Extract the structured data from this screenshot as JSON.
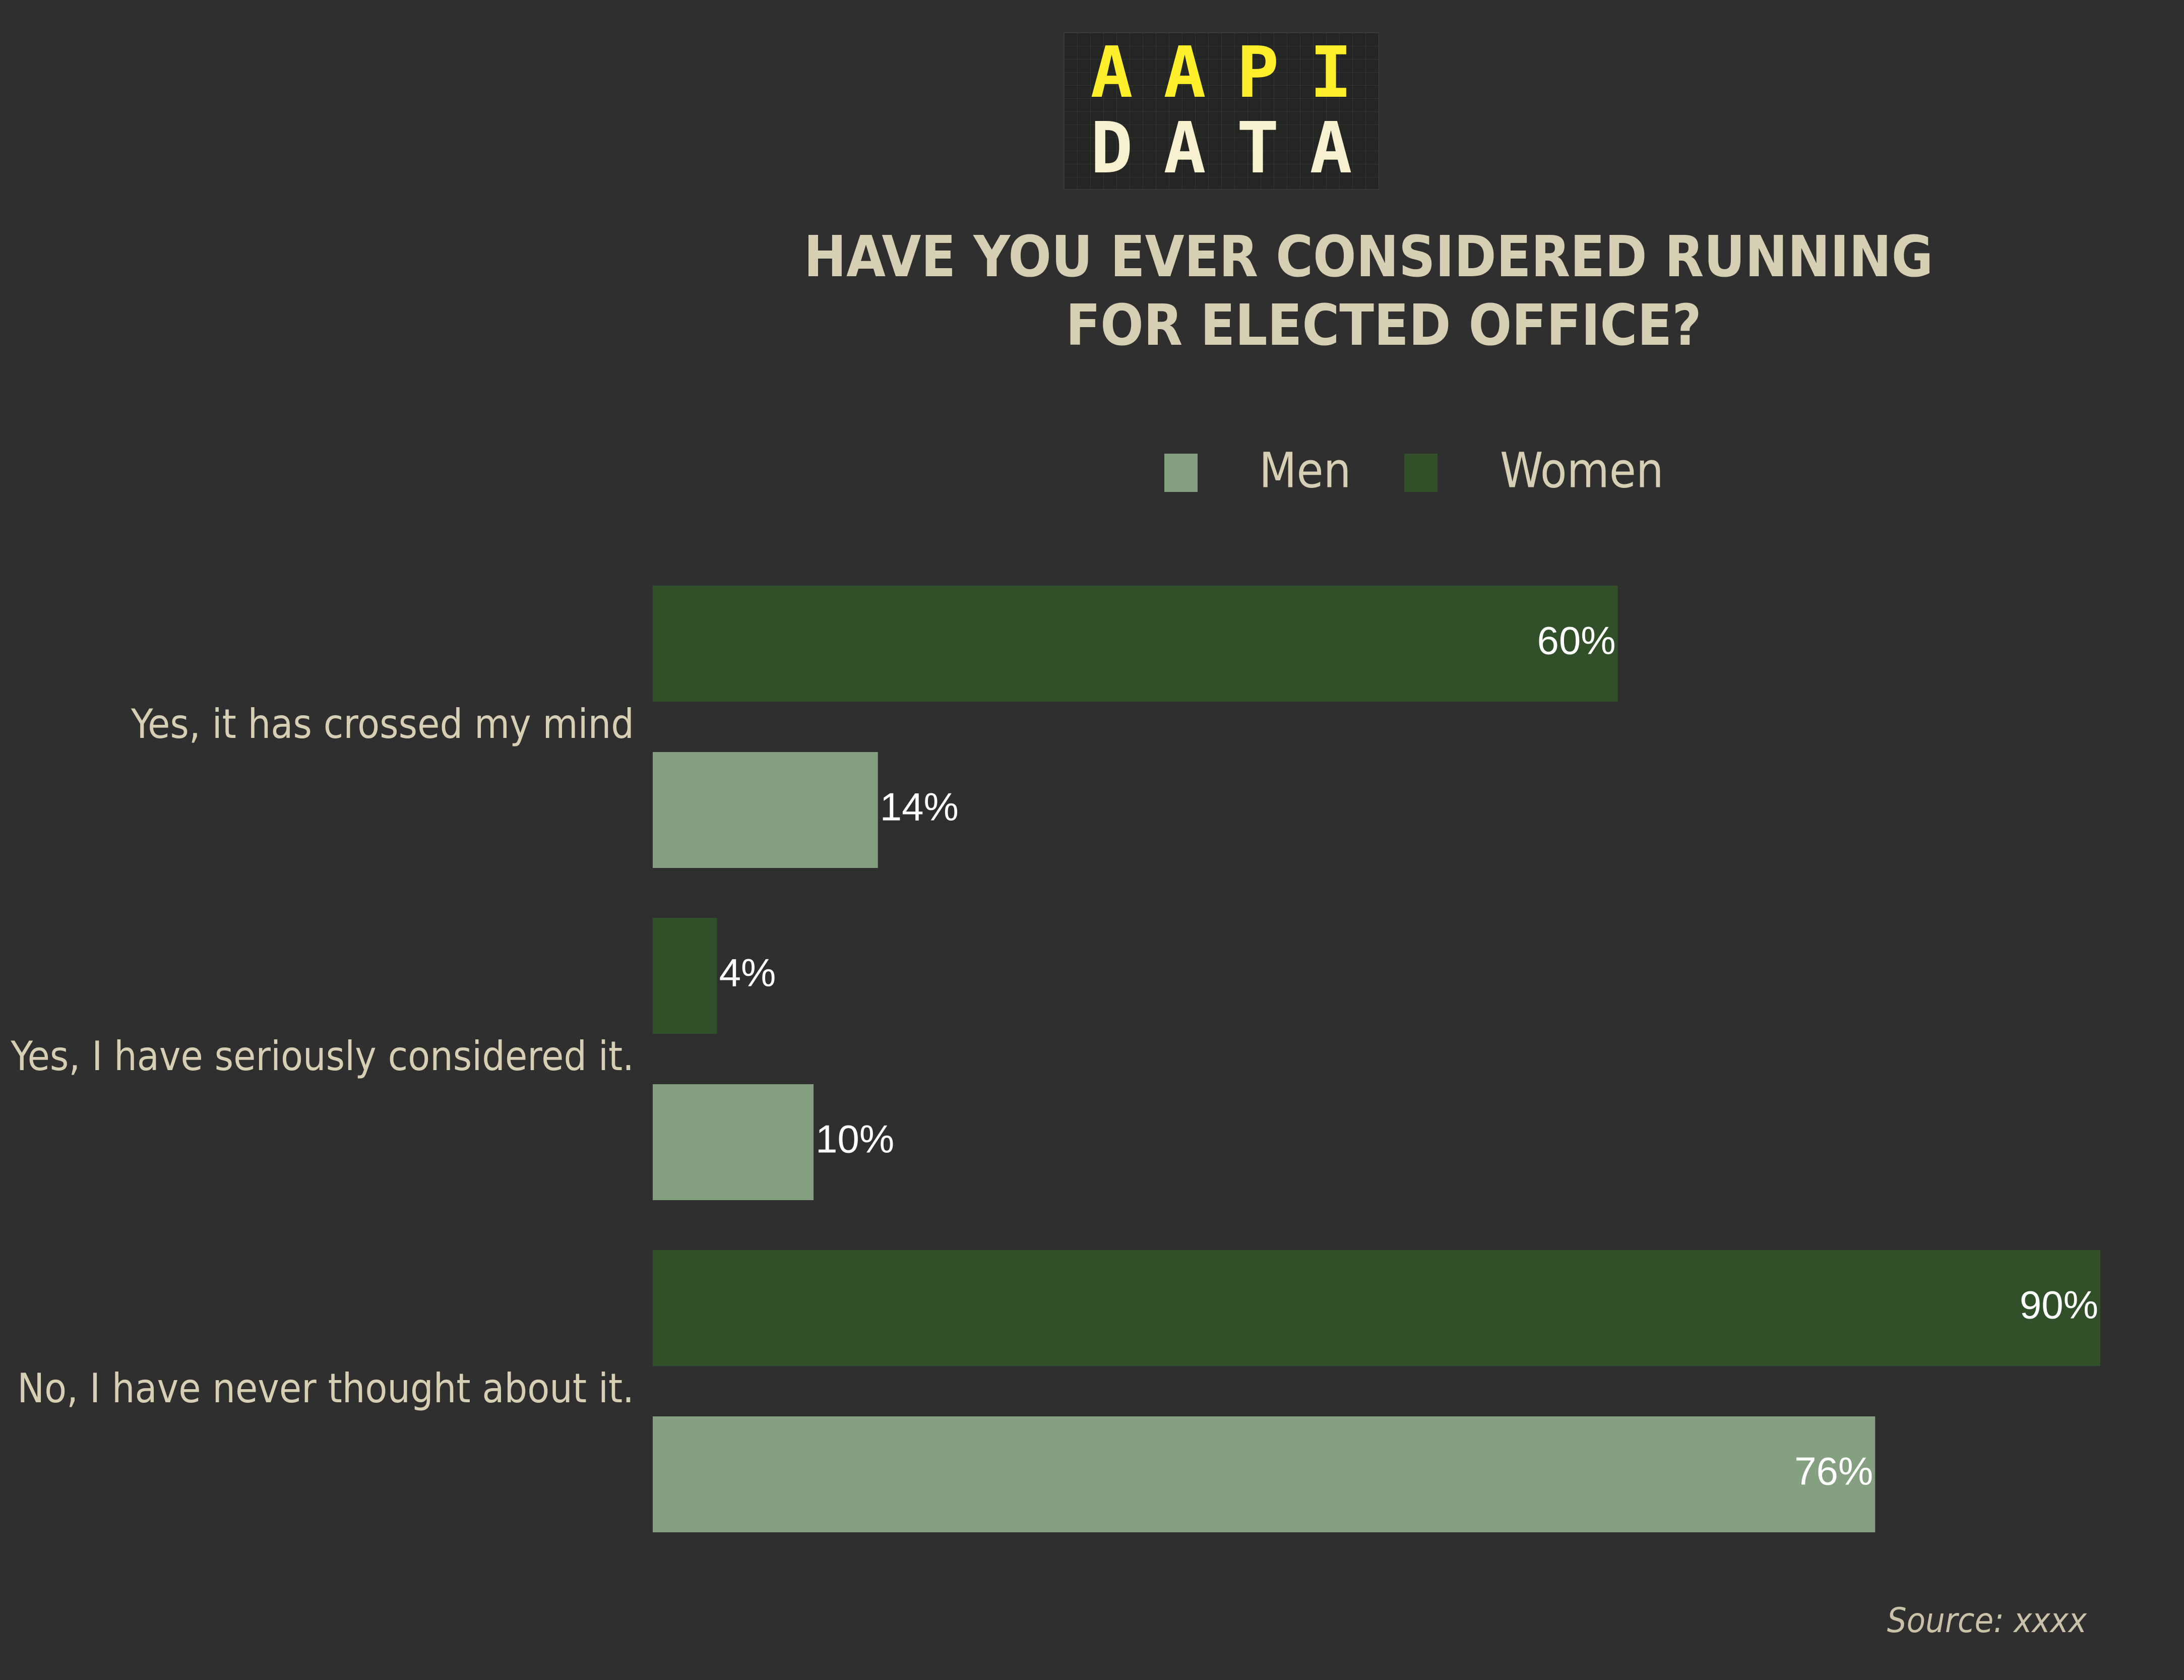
{
  "logo": {
    "line1": [
      "A",
      "A",
      "P",
      "I"
    ],
    "line2": [
      "D",
      "A",
      "T",
      "A"
    ]
  },
  "chart_data": {
    "type": "bar",
    "orientation": "horizontal",
    "title": [
      "HAVE YOU EVER CONSIDERED RUNNING",
      "FOR ELECTED OFFICE?"
    ],
    "categories": [
      "Yes, it has crossed my mind",
      "Yes, I have seriously considered it.",
      "No, I have never thought about it."
    ],
    "series": [
      {
        "name": "Women",
        "color": "#31502a",
        "values": [
          60,
          4,
          90
        ],
        "labels": [
          "60%",
          "4%",
          "90%"
        ]
      },
      {
        "name": "Men",
        "color": "#84a081",
        "values": [
          14,
          10,
          76
        ],
        "labels": [
          "14%",
          "10%",
          "76%"
        ]
      }
    ],
    "legend": {
      "position": "top",
      "order": [
        "Men",
        "Women"
      ]
    },
    "xlim": [
      0,
      90
    ],
    "grid": false
  },
  "source": "Source: xxxx"
}
